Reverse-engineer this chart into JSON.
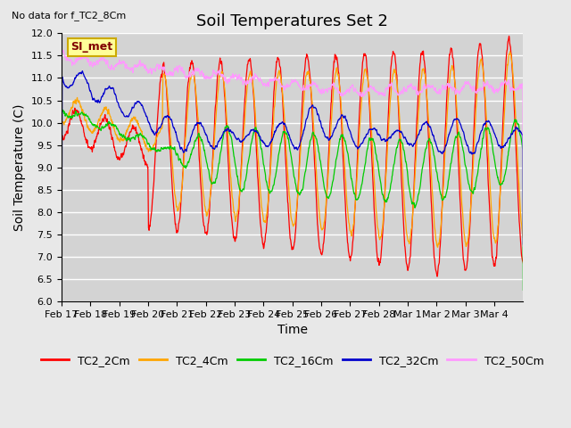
{
  "title": "Soil Temperatures Set 2",
  "xlabel": "Time",
  "ylabel": "Soil Temperature (C)",
  "note": "No data for f_TC2_8Cm",
  "legend_label": "SI_met",
  "ylim": [
    6.0,
    12.0
  ],
  "yticks": [
    6.0,
    6.5,
    7.0,
    7.5,
    8.0,
    8.5,
    9.0,
    9.5,
    10.0,
    10.5,
    11.0,
    11.5,
    12.0
  ],
  "xtick_labels": [
    "Feb 17",
    "Feb 18",
    "Feb 19",
    "Feb 20",
    "Feb 21",
    "Feb 22",
    "Feb 23",
    "Feb 24",
    "Feb 25",
    "Feb 26",
    "Feb 27",
    "Feb 28",
    "Mar 1",
    "Mar 2",
    "Mar 3",
    "Mar 4"
  ],
  "series_colors": {
    "TC2_2Cm": "#ff0000",
    "TC2_4Cm": "#ffa500",
    "TC2_16Cm": "#00cc00",
    "TC2_32Cm": "#0000cc",
    "TC2_50Cm": "#ff99ff"
  },
  "background_color": "#e8e8e8",
  "plot_bg_color": "#d3d3d3",
  "grid_color": "#ffffff",
  "title_fontsize": 13,
  "axis_fontsize": 10,
  "tick_fontsize": 8
}
